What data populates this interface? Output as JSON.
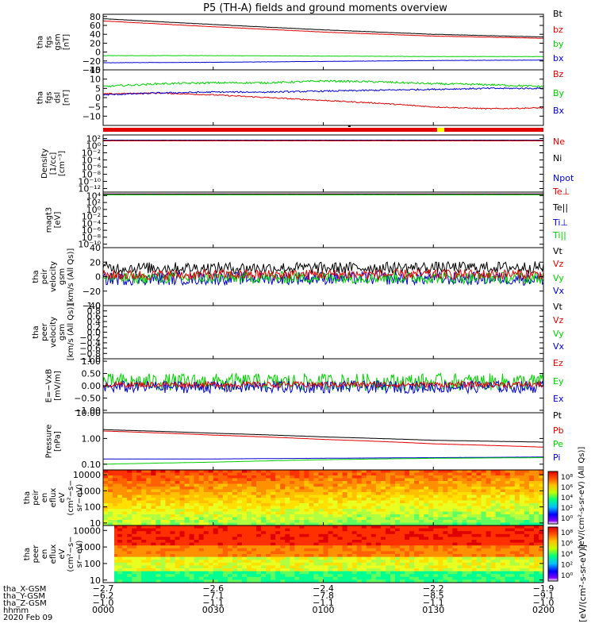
{
  "title": "P5 (TH-A) fields and ground moments overview",
  "colors": {
    "black": "#000000",
    "red": "#e00000",
    "green": "#00d000",
    "blue": "#0000d0",
    "yellow": "#ffff00",
    "frame": "#000000"
  },
  "chart_data": [
    {
      "type": "line",
      "id": "fgs_gsm",
      "ylabel": [
        "tha",
        "fgs",
        "gsm",
        "[nT]"
      ],
      "ylim": [
        -40,
        85
      ],
      "yticks": [
        80,
        60,
        40,
        20,
        0,
        -20,
        -40
      ],
      "ytick_labels": [
        "80",
        "60",
        "40",
        "20",
        "0",
        "−20",
        "−40"
      ],
      "legend": [
        "Bt",
        "bz",
        "by",
        "bx"
      ],
      "legend_colors": [
        "black",
        "red",
        "green",
        "blue"
      ],
      "x": [
        0,
        30,
        60,
        90,
        120
      ],
      "series": [
        {
          "name": "Bt",
          "color": "black",
          "values": [
            75,
            62,
            50,
            40,
            34
          ],
          "noise": 0.3
        },
        {
          "name": "bz",
          "color": "red",
          "values": [
            70,
            57,
            45,
            36,
            31
          ],
          "noise": 0.3
        },
        {
          "name": "by",
          "color": "green",
          "values": [
            -8,
            -8,
            -9,
            -10,
            -10
          ],
          "noise": 0.3
        },
        {
          "name": "bx",
          "color": "blue",
          "values": [
            -24,
            -23,
            -21,
            -19,
            -18
          ],
          "noise": 0.3
        }
      ]
    },
    {
      "type": "line",
      "id": "fgs_dsl",
      "ylabel": [
        "tha",
        "fgs",
        "dsl",
        "[nT]"
      ],
      "ylim": [
        -15,
        15
      ],
      "yticks": [
        15,
        10,
        5,
        0,
        -5,
        -10
      ],
      "ytick_labels": [
        "15",
        "10",
        "5",
        "0",
        "−5",
        "−10"
      ],
      "legend": [
        "Bz",
        "By",
        "Bx"
      ],
      "legend_colors": [
        "red",
        "green",
        "blue"
      ],
      "x": [
        0,
        15,
        30,
        45,
        60,
        75,
        90,
        105,
        120
      ],
      "series": [
        {
          "name": "Bz",
          "color": "red",
          "values": [
            2,
            2.5,
            1.5,
            0,
            -1.5,
            -3,
            -5,
            -6,
            -5.5
          ],
          "noise": 0.3
        },
        {
          "name": "By",
          "color": "green",
          "values": [
            6,
            7.5,
            8,
            8,
            9,
            8.5,
            7.5,
            7,
            6
          ],
          "noise": 0.5
        },
        {
          "name": "Bx",
          "color": "blue",
          "values": [
            1.5,
            2.5,
            3,
            3,
            3.5,
            4,
            4.5,
            5,
            5
          ],
          "noise": 0.4
        }
      ]
    },
    {
      "type": "bar",
      "id": "flag_bar",
      "description_label": "",
      "segments": [
        {
          "x0": 0,
          "x1": 120,
          "color": "red"
        },
        {
          "x0": 91,
          "x1": 93,
          "color": "yellow"
        }
      ],
      "tick_marks": [
        {
          "x": 67,
          "color": "black"
        }
      ]
    },
    {
      "type": "line",
      "id": "density",
      "ylabel": [
        "Density",
        "[1/cc]",
        "[cm⁻³]"
      ],
      "yscale": "log",
      "ylim": [
        1e-13,
        1000.0
      ],
      "yticks": [
        100,
        1,
        0.01,
        0.0001,
        1e-06,
        1e-08,
        1e-10,
        1e-12
      ],
      "ytick_labels": [
        "10²",
        "10⁰",
        "10⁻²",
        "10⁻⁴",
        "10⁻⁶",
        "10⁻⁸",
        "10⁻¹⁰",
        "10⁻¹²"
      ],
      "legend": [
        "Ne",
        "Ni",
        "Npot"
      ],
      "legend_colors": [
        "red",
        "black",
        "blue"
      ],
      "x": [
        0,
        60,
        120
      ],
      "series": [
        {
          "name": "Ni",
          "color": "black",
          "values": [
            35,
            35,
            35
          ],
          "noise": 0.05
        },
        {
          "name": "Npot",
          "color": "blue",
          "values": [
            28,
            28,
            28
          ],
          "noise": 0.05
        },
        {
          "name": "Ne",
          "color": "red",
          "values": [
            22,
            22,
            22
          ],
          "noise": 0.05
        }
      ]
    },
    {
      "type": "line",
      "id": "temperature",
      "ylabel": [
        "magt3",
        "[eV]"
      ],
      "yscale": "log",
      "ylim": [
        1e-11,
        100000.0
      ],
      "yticks": [
        10000.0,
        100,
        1,
        0.01,
        0.0001,
        1e-06,
        1e-08,
        1e-10
      ],
      "ytick_labels": [
        "10⁴",
        "10²",
        "10⁰",
        "10⁻²",
        "10⁻⁴",
        "10⁻⁶",
        "10⁻⁸",
        "10⁻¹⁰"
      ],
      "legend": [
        "Te⊥",
        "Te||",
        "Ti⊥",
        "Ti||"
      ],
      "legend_colors": [
        "red",
        "black",
        "blue",
        "green"
      ],
      "x": [
        0,
        60,
        120
      ],
      "series": [
        {
          "name": "Te||",
          "color": "black",
          "values": [
            30000,
            30000,
            30000
          ],
          "noise": 0.05
        },
        {
          "name": "Ti⊥",
          "color": "blue",
          "values": [
            24000,
            24000,
            24000
          ],
          "noise": 0.05
        },
        {
          "name": "Te⊥",
          "color": "red",
          "values": [
            20000,
            20000,
            20000
          ],
          "noise": 0.05
        },
        {
          "name": "Ti||",
          "color": "green",
          "values": [
            16000,
            16000,
            16000
          ],
          "noise": 0.05
        }
      ]
    },
    {
      "type": "line",
      "id": "peir_velocity",
      "ylabel": [
        "tha",
        "peir",
        "velocity",
        "gsm",
        "[km/s (All Qs)]"
      ],
      "ylim": [
        -40,
        40
      ],
      "yticks": [
        40,
        20,
        0,
        -20,
        -40
      ],
      "ytick_labels": [
        "40",
        "20",
        "0",
        "−20",
        "−40"
      ],
      "legend": [
        "Vt",
        "Vz",
        "Vy",
        "Vx"
      ],
      "legend_colors": [
        "black",
        "red",
        "green",
        "blue"
      ],
      "x": [
        0,
        60,
        120
      ],
      "series": [
        {
          "name": "Vx",
          "color": "blue",
          "values": [
            -3,
            -2,
            -3
          ],
          "noise": 9
        },
        {
          "name": "Vy",
          "color": "green",
          "values": [
            -2,
            -1,
            -2
          ],
          "noise": 8
        },
        {
          "name": "Vt",
          "color": "black",
          "values": [
            12,
            12,
            13
          ],
          "noise": 8
        },
        {
          "name": "Vz",
          "color": "red",
          "values": [
            2,
            3,
            3
          ],
          "noise": 7
        }
      ]
    },
    {
      "type": "line",
      "id": "peer_velocity",
      "ylabel": [
        "tha",
        "peer",
        "velocity",
        "gsm",
        "[km/s (All Qs)]"
      ],
      "ylim": [
        -1.0,
        1.0
      ],
      "yticks": [
        1.0,
        0.8,
        0.6,
        0.4,
        0.2,
        0.0,
        -0.2,
        -0.4,
        -0.6,
        -0.8,
        -1.0
      ],
      "ytick_labels": [
        "1.0",
        "0.8",
        "0.6",
        "0.4",
        "0.2",
        "0.0",
        "−0.2",
        "−0.4",
        "−0.6",
        "−0.8",
        "−1.0"
      ],
      "legend": [
        "Vt",
        "Vz",
        "Vy",
        "Vx"
      ],
      "legend_colors": [
        "black",
        "red",
        "green",
        "blue"
      ],
      "x": [
        0,
        120
      ],
      "series": []
    },
    {
      "type": "line",
      "id": "efield",
      "ylabel": [
        "E=−VxB",
        "[mV/m]"
      ],
      "ylim": [
        -1.1,
        1.1
      ],
      "yticks": [
        1.0,
        0.5,
        0.0,
        -0.5,
        -1.0
      ],
      "ytick_labels": [
        "1.00",
        "0.50",
        "0.00",
        "−0.50",
        "−1.00"
      ],
      "legend": [
        "Ez",
        "Ey",
        "Ex"
      ],
      "legend_colors": [
        "red",
        "green",
        "blue"
      ],
      "x": [
        0,
        60,
        120
      ],
      "series": [
        {
          "name": "Ey",
          "color": "green",
          "values": [
            0.15,
            0.15,
            0.15
          ],
          "noise": 0.35
        },
        {
          "name": "Ex",
          "color": "blue",
          "values": [
            -0.05,
            -0.05,
            -0.05
          ],
          "noise": 0.25
        },
        {
          "name": "Ez",
          "color": "red",
          "values": [
            0.05,
            0.05,
            0.05
          ],
          "noise": 0.12
        }
      ]
    },
    {
      "type": "line",
      "id": "pressure",
      "ylabel": [
        "Pressure",
        "[nPa]"
      ],
      "yscale": "log",
      "ylim": [
        0.06,
        10
      ],
      "yticks": [
        10,
        1,
        0.1
      ],
      "ytick_labels": [
        "10.00",
        "1.00",
        "0.10"
      ],
      "legend": [
        "Pt",
        "Pb",
        "Pe",
        "Pi"
      ],
      "legend_colors": [
        "black",
        "red",
        "green",
        "blue"
      ],
      "x": [
        0,
        30,
        60,
        90,
        120
      ],
      "series": [
        {
          "name": "Pt",
          "color": "black",
          "values": [
            2.2,
            1.6,
            1.15,
            0.85,
            0.72
          ],
          "noise": 0.01
        },
        {
          "name": "Pb",
          "color": "red",
          "values": [
            1.95,
            1.35,
            0.92,
            0.62,
            0.46
          ],
          "noise": 0.01
        },
        {
          "name": "Pi",
          "color": "blue",
          "values": [
            0.16,
            0.16,
            0.17,
            0.18,
            0.19
          ],
          "noise": 0.005
        },
        {
          "name": "Pe",
          "color": "green",
          "values": [
            0.1,
            0.12,
            0.15,
            0.17,
            0.18
          ],
          "noise": 0.005
        }
      ]
    },
    {
      "type": "heatmap",
      "id": "peir_spectrogram",
      "ylabel": [
        "tha",
        "peir",
        "en",
        "eflux",
        "eV",
        "(cm²−s−",
        "sr−eV)"
      ],
      "yscale": "log",
      "ylim": [
        7,
        20000
      ],
      "yticks": [
        10000,
        1000,
        100,
        10
      ],
      "ytick_labels": [
        "10000",
        "1000",
        "100",
        "10"
      ]
    },
    {
      "type": "heatmap",
      "id": "peer_spectrogram",
      "ylabel": [
        "tha",
        "peer",
        "en",
        "eflux",
        "eV",
        "(cm²−s−",
        "sr−eV)"
      ],
      "yscale": "log",
      "ylim": [
        7,
        20000
      ],
      "yticks": [
        10000,
        1000,
        100,
        10
      ],
      "ytick_labels": [
        "10000",
        "1000",
        "100",
        "10"
      ]
    }
  ],
  "colorbar": {
    "label": "[eV/(cm²-s-sr-eV)]",
    "upper_label": "[eV/(cm²-s-sr-eV) (All Qs)]",
    "ticks": [
      "10⁸",
      "10⁶",
      "10⁴",
      "10²",
      "10⁰"
    ]
  },
  "x_axis": {
    "xlim": [
      0,
      120
    ],
    "ticks": [
      0,
      30,
      60,
      90,
      120
    ],
    "row_labels": [
      "tha_X-GSM",
      "tha_Y-GSM",
      "tha_Z-GSM",
      "hhmm",
      "2020 Feb 09"
    ],
    "rows": [
      [
        "−2.7",
        "−2.6",
        "−2.4",
        "−2.2",
        "−1.9"
      ],
      [
        "−6.2",
        "−7.1",
        "−7.8",
        "−8.5",
        "−9.1"
      ],
      [
        "−1.0",
        "−1.1",
        "−1.1",
        "−1.1",
        "−1.0"
      ],
      [
        "0000",
        "0030",
        "0100",
        "0130",
        "0200"
      ]
    ]
  }
}
